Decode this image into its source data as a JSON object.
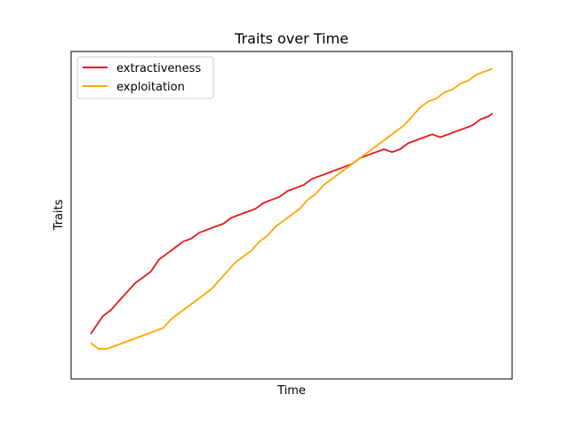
{
  "chart_data": {
    "type": "line",
    "title": "Traits over Time",
    "xlabel": "Time",
    "ylabel": "Traits",
    "x": [
      0,
      0.25,
      0.5,
      0.75,
      1
    ],
    "xlim": [
      0,
      1
    ],
    "ylim": [
      0,
      1
    ],
    "x_ticks_shown": false,
    "y_ticks_shown": false,
    "grid": false,
    "legend_position": "top-left",
    "series": [
      {
        "name": "extractiveness",
        "color": "#e31a1c",
        "points": [
          [
            0.0,
            0.1
          ],
          [
            0.01,
            0.12
          ],
          [
            0.02,
            0.14
          ],
          [
            0.03,
            0.16
          ],
          [
            0.05,
            0.18
          ],
          [
            0.07,
            0.21
          ],
          [
            0.09,
            0.24
          ],
          [
            0.11,
            0.27
          ],
          [
            0.13,
            0.29
          ],
          [
            0.15,
            0.31
          ],
          [
            0.17,
            0.35
          ],
          [
            0.19,
            0.37
          ],
          [
            0.21,
            0.39
          ],
          [
            0.23,
            0.41
          ],
          [
            0.25,
            0.42
          ],
          [
            0.27,
            0.44
          ],
          [
            0.29,
            0.45
          ],
          [
            0.31,
            0.46
          ],
          [
            0.33,
            0.47
          ],
          [
            0.35,
            0.49
          ],
          [
            0.37,
            0.5
          ],
          [
            0.39,
            0.51
          ],
          [
            0.41,
            0.52
          ],
          [
            0.43,
            0.54
          ],
          [
            0.45,
            0.55
          ],
          [
            0.47,
            0.56
          ],
          [
            0.49,
            0.58
          ],
          [
            0.51,
            0.59
          ],
          [
            0.53,
            0.6
          ],
          [
            0.55,
            0.62
          ],
          [
            0.57,
            0.63
          ],
          [
            0.59,
            0.64
          ],
          [
            0.61,
            0.65
          ],
          [
            0.63,
            0.66
          ],
          [
            0.65,
            0.67
          ],
          [
            0.67,
            0.69
          ],
          [
            0.69,
            0.7
          ],
          [
            0.71,
            0.71
          ],
          [
            0.73,
            0.72
          ],
          [
            0.75,
            0.71
          ],
          [
            0.77,
            0.72
          ],
          [
            0.79,
            0.74
          ],
          [
            0.81,
            0.75
          ],
          [
            0.83,
            0.76
          ],
          [
            0.85,
            0.77
          ],
          [
            0.87,
            0.76
          ],
          [
            0.89,
            0.77
          ],
          [
            0.91,
            0.78
          ],
          [
            0.93,
            0.79
          ],
          [
            0.95,
            0.8
          ],
          [
            0.97,
            0.82
          ],
          [
            0.99,
            0.83
          ],
          [
            1.0,
            0.84
          ]
        ]
      },
      {
        "name": "exploitation",
        "color": "#ffa500",
        "points": [
          [
            0.0,
            0.07
          ],
          [
            0.02,
            0.05
          ],
          [
            0.04,
            0.05
          ],
          [
            0.06,
            0.06
          ],
          [
            0.08,
            0.07
          ],
          [
            0.1,
            0.08
          ],
          [
            0.12,
            0.09
          ],
          [
            0.14,
            0.1
          ],
          [
            0.16,
            0.11
          ],
          [
            0.18,
            0.12
          ],
          [
            0.2,
            0.15
          ],
          [
            0.22,
            0.17
          ],
          [
            0.24,
            0.19
          ],
          [
            0.26,
            0.21
          ],
          [
            0.28,
            0.23
          ],
          [
            0.3,
            0.25
          ],
          [
            0.32,
            0.28
          ],
          [
            0.34,
            0.31
          ],
          [
            0.36,
            0.34
          ],
          [
            0.38,
            0.36
          ],
          [
            0.4,
            0.38
          ],
          [
            0.42,
            0.41
          ],
          [
            0.44,
            0.43
          ],
          [
            0.46,
            0.46
          ],
          [
            0.48,
            0.48
          ],
          [
            0.5,
            0.5
          ],
          [
            0.52,
            0.52
          ],
          [
            0.54,
            0.55
          ],
          [
            0.56,
            0.57
          ],
          [
            0.58,
            0.6
          ],
          [
            0.6,
            0.62
          ],
          [
            0.62,
            0.64
          ],
          [
            0.64,
            0.66
          ],
          [
            0.66,
            0.68
          ],
          [
            0.68,
            0.7
          ],
          [
            0.7,
            0.72
          ],
          [
            0.72,
            0.74
          ],
          [
            0.74,
            0.76
          ],
          [
            0.76,
            0.78
          ],
          [
            0.78,
            0.8
          ],
          [
            0.8,
            0.83
          ],
          [
            0.82,
            0.86
          ],
          [
            0.84,
            0.88
          ],
          [
            0.86,
            0.89
          ],
          [
            0.88,
            0.91
          ],
          [
            0.9,
            0.92
          ],
          [
            0.92,
            0.94
          ],
          [
            0.94,
            0.95
          ],
          [
            0.96,
            0.97
          ],
          [
            0.98,
            0.98
          ],
          [
            1.0,
            0.99
          ]
        ]
      }
    ]
  }
}
